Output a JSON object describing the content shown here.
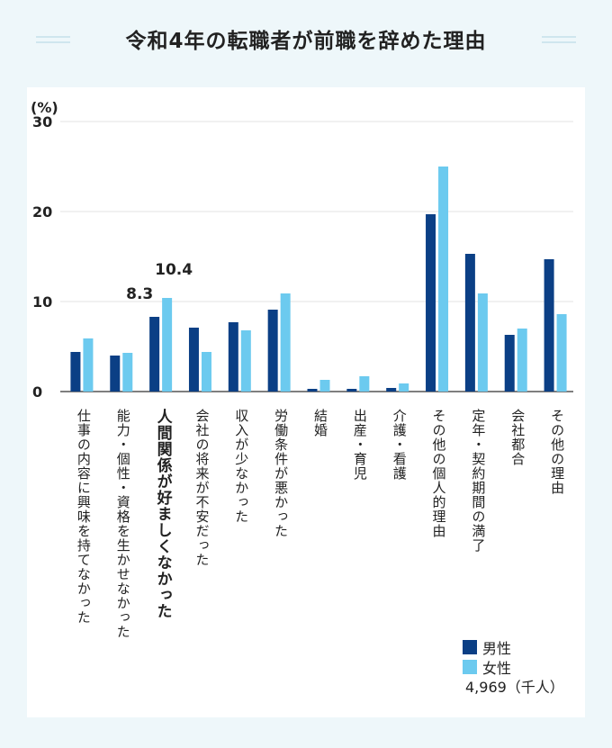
{
  "title": "令和4年の転職者が前職を辞めた理由",
  "chart_data": {
    "type": "bar",
    "y_unit": "(%)",
    "ylim": [
      0,
      30
    ],
    "yticks": [
      0,
      10,
      20,
      30
    ],
    "grid": true,
    "legend_position": "bottom-right",
    "categories": [
      "仕事の内容に興味を持てなかった",
      "能力・個性・資格を生かせなかった",
      "人間関係が好ましくなかった",
      "会社の将来が不安だった",
      "収入が少なかった",
      "労働条件が悪かった",
      "結婚",
      "出産・育児",
      "介護・看護",
      "その他の個人的理由",
      "定年・契約期間の満了",
      "会社都合",
      "その他の理由"
    ],
    "highlight_index": 2,
    "series": [
      {
        "name": "男性",
        "color": "#0b3f85",
        "values": [
          4.4,
          4.0,
          8.3,
          7.1,
          7.7,
          9.1,
          0.3,
          0.3,
          0.4,
          19.7,
          15.3,
          6.3,
          14.7
        ]
      },
      {
        "name": "女性",
        "color": "#6ccaef",
        "values": [
          5.9,
          4.3,
          10.4,
          4.4,
          6.8,
          10.9,
          1.3,
          1.7,
          0.9,
          25.0,
          10.9,
          7.0,
          8.6
        ]
      }
    ],
    "data_labels": [
      "8.3",
      "10.4"
    ],
    "total_note": "4,969（千人）"
  }
}
